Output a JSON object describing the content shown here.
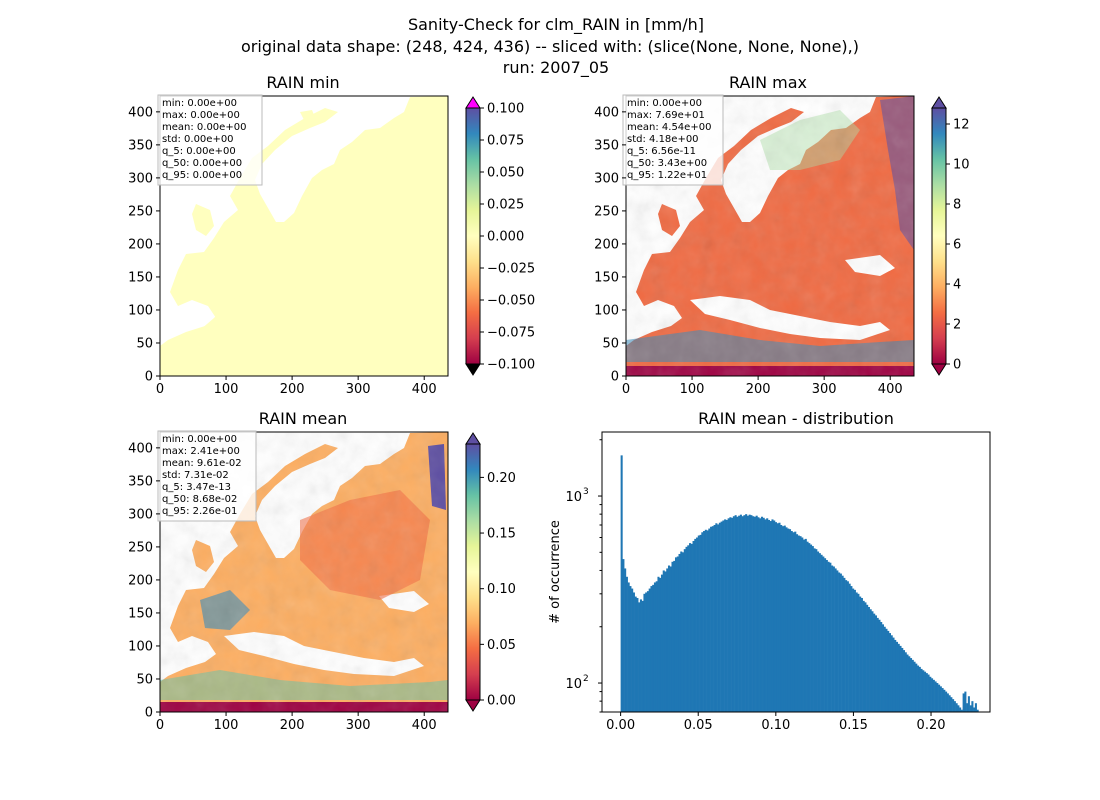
{
  "figure": {
    "title_lines": [
      "Sanity-Check for clm_RAIN in [mm/h]",
      "original data shape: (248, 424, 436) -- sliced with: (slice(None, None, None),)",
      "run: 2007_05"
    ]
  },
  "chart_data": [
    {
      "type": "heatmap",
      "title": "RAIN min",
      "xlim": [
        0,
        436
      ],
      "ylim": [
        0,
        424
      ],
      "xticks": [
        0,
        100,
        200,
        300,
        400
      ],
      "yticks": [
        0,
        50,
        100,
        150,
        200,
        250,
        300,
        350,
        400
      ],
      "colormap": "Spectral",
      "colorbar": {
        "range": [
          -0.1,
          0.1
        ],
        "ticks": [
          "0.100",
          "0.075",
          "0.050",
          "0.025",
          "0.000",
          "−0.025",
          "−0.050",
          "−0.075",
          "−0.100"
        ],
        "extend_top_color": "#ff00ff"
      },
      "stats": [
        "min: 0.00e+00",
        "max: 0.00e+00",
        "mean: 0.00e+00",
        "std: 0.00e+00",
        "q_5: 0.00e+00",
        "q_50: 0.00e+00",
        "q_95: 0.00e+00"
      ]
    },
    {
      "type": "heatmap",
      "title": "RAIN max",
      "xlim": [
        0,
        436
      ],
      "ylim": [
        0,
        424
      ],
      "xticks": [
        0,
        100,
        200,
        300,
        400
      ],
      "yticks": [
        0,
        50,
        100,
        150,
        200,
        250,
        300,
        350,
        400
      ],
      "colormap": "Spectral",
      "colorbar": {
        "range": [
          0,
          12.8
        ],
        "ticks": [
          "12",
          "10",
          "8",
          "6",
          "4",
          "2",
          "0"
        ]
      },
      "stats": [
        "min: 0.00e+00",
        "max: 7.69e+01",
        "mean: 4.54e+00",
        "std: 4.18e+00",
        "q_5: 6.56e-11",
        "q_50: 3.43e+00",
        "q_95: 1.22e+01"
      ]
    },
    {
      "type": "heatmap",
      "title": "RAIN mean",
      "xlim": [
        0,
        436
      ],
      "ylim": [
        0,
        424
      ],
      "xticks": [
        0,
        100,
        200,
        300,
        400
      ],
      "yticks": [
        0,
        50,
        100,
        150,
        200,
        250,
        300,
        350,
        400
      ],
      "colormap": "Spectral",
      "colorbar": {
        "range": [
          0,
          0.23
        ],
        "ticks": [
          "0.20",
          "0.15",
          "0.10",
          "0.05",
          "0.00"
        ]
      },
      "stats": [
        "min: 0.00e+00",
        "max: 2.41e+00",
        "mean: 9.61e-02",
        "std: 7.31e-02",
        "q_5: 3.47e-13",
        "q_50: 8.68e-02",
        "q_95: 2.26e-01"
      ]
    },
    {
      "type": "bar",
      "title": "RAIN mean - distribution",
      "ylabel": "# of occurrence",
      "xlabel": "",
      "yscale": "log",
      "ylim": [
        70,
        2200
      ],
      "xlim": [
        -0.012,
        0.238
      ],
      "xticks": [
        "0.00",
        "0.05",
        "0.10",
        "0.15",
        "0.20"
      ],
      "yticks": [
        "10",
        "10"
      ],
      "ytick_exponents": [
        "2",
        "3"
      ],
      "bin_start": 0.0,
      "bin_width": 0.00113,
      "bar_color": "#1f77b4",
      "values": [
        1650,
        460,
        410,
        370,
        345,
        330,
        320,
        305,
        290,
        285,
        270,
        280,
        275,
        300,
        305,
        310,
        320,
        330,
        335,
        345,
        350,
        370,
        365,
        380,
        400,
        395,
        410,
        425,
        420,
        445,
        450,
        470,
        475,
        490,
        505,
        500,
        520,
        535,
        545,
        560,
        555,
        575,
        590,
        600,
        615,
        620,
        640,
        650,
        660,
        655,
        670,
        685,
        690,
        700,
        715,
        705,
        720,
        730,
        740,
        750,
        745,
        760,
        770,
        765,
        780,
        790,
        775,
        785,
        795,
        780,
        790,
        800,
        785,
        795,
        790,
        780,
        775,
        785,
        770,
        760,
        775,
        765,
        750,
        760,
        745,
        735,
        750,
        740,
        725,
        715,
        720,
        700,
        690,
        695,
        680,
        670,
        665,
        650,
        640,
        645,
        625,
        615,
        610,
        600,
        585,
        590,
        570,
        560,
        550,
        540,
        525,
        520,
        505,
        495,
        485,
        475,
        465,
        455,
        445,
        440,
        425,
        420,
        410,
        400,
        390,
        385,
        375,
        365,
        355,
        350,
        340,
        330,
        320,
        315,
        305,
        300,
        290,
        285,
        275,
        270,
        262,
        255,
        248,
        242,
        235,
        230,
        223,
        218,
        212,
        206,
        200,
        195,
        190,
        185,
        180,
        175,
        170,
        166,
        162,
        158,
        154,
        150,
        146,
        142,
        139,
        136,
        133,
        130,
        127,
        124,
        122,
        119,
        117,
        115,
        113,
        111,
        108,
        106,
        104,
        102,
        100,
        98,
        96,
        94,
        92,
        90,
        88,
        86,
        84,
        82,
        80,
        78,
        76,
        74,
        72,
        88,
        90,
        78,
        85,
        76,
        80,
        74,
        78,
        72
      ]
    }
  ]
}
